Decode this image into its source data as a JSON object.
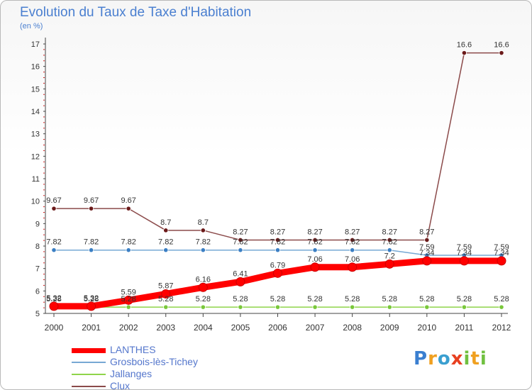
{
  "title": "Evolution du Taux de Taxe d'Habitation",
  "unit_label": "(en %)",
  "chart_data": {
    "type": "line",
    "title": "Evolution du Taux de Taxe d'Habitation",
    "ylabel": "(en %)",
    "xlabel": "",
    "x": [
      "2000",
      "2001",
      "2002",
      "2003",
      "2004",
      "2005",
      "2006",
      "2007",
      "2008",
      "2009",
      "2010",
      "2011",
      "2012"
    ],
    "ylim": [
      5,
      17
    ],
    "yticks": [
      5,
      6,
      7,
      8,
      9,
      10,
      11,
      12,
      13,
      14,
      15,
      16,
      17
    ],
    "grid": false,
    "legend_position": "bottom-left",
    "series": [
      {
        "name": "LANTHES",
        "color": "#ff0000",
        "marker_color": "#ff0000",
        "values": [
          5.32,
          5.32,
          5.59,
          5.87,
          6.16,
          6.41,
          6.79,
          7.06,
          7.06,
          7.2,
          7.34,
          7.34,
          7.34
        ],
        "labels": [
          "5.32",
          "5.32",
          "5.59",
          "5.87",
          "6.16",
          "6.41",
          "6.79",
          "7.06",
          "7.06",
          "7.2",
          "7.34",
          "7.34",
          "7.34"
        ]
      },
      {
        "name": "Grosbois-lès-Tichey",
        "color": "#77a8d4",
        "marker_color": "#3b7fc4",
        "values": [
          7.82,
          7.82,
          7.82,
          7.82,
          7.82,
          7.82,
          7.82,
          7.82,
          7.82,
          7.82,
          7.59,
          7.59,
          7.59
        ],
        "labels": [
          "7.82",
          "7.82",
          "7.82",
          "7.82",
          "7.82",
          "7.82",
          "7.82",
          "7.82",
          "7.82",
          "7.82",
          "7.59",
          "7.59",
          "7.59"
        ]
      },
      {
        "name": "Jallanges",
        "color": "#8fd44a",
        "marker_color": "#79c83a",
        "values": [
          5.28,
          5.28,
          5.28,
          5.28,
          5.28,
          5.28,
          5.28,
          5.28,
          5.28,
          5.28,
          5.28,
          5.28,
          5.28
        ],
        "labels": [
          "5.28",
          "5.28",
          "5.28",
          "5.28",
          "5.28",
          "5.28",
          "5.28",
          "5.28",
          "5.28",
          "5.28",
          "5.28",
          "5.28",
          "5.28"
        ]
      },
      {
        "name": "Clux",
        "color": "#8b4a4a",
        "marker_color": "#6b1a1a",
        "values": [
          9.67,
          9.67,
          9.67,
          8.7,
          8.7,
          8.27,
          8.27,
          8.27,
          8.27,
          8.27,
          8.27,
          16.6,
          16.6
        ],
        "labels": [
          "9.67",
          "9.67",
          "9.67",
          "8.7",
          "8.7",
          "8.27",
          "8.27",
          "8.27",
          "8.27",
          "8.27",
          "8.27",
          "16.6",
          "16.6"
        ]
      }
    ]
  },
  "logo": {
    "letters": [
      "P",
      "r",
      "o",
      "x",
      "i",
      "t",
      "i"
    ],
    "colors": [
      "#3a7fd0",
      "#f0a020",
      "#3a9fd0",
      "#e84020",
      "#70c040",
      "#f0a020",
      "#70c040"
    ]
  }
}
